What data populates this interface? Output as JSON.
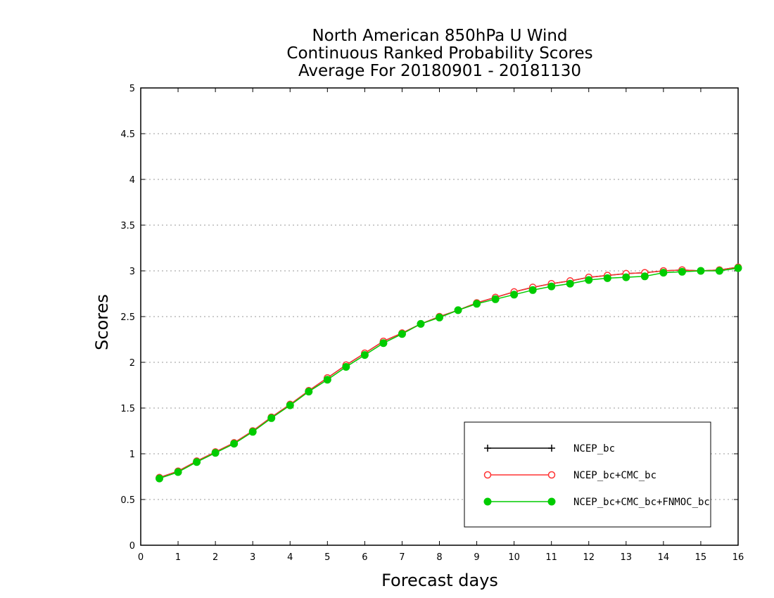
{
  "chart_data": {
    "type": "line",
    "title": [
      "North American 850hPa U Wind",
      "Continuous Ranked Probability Scores",
      "Average For 20180901 - 20181130"
    ],
    "xlabel": "Forecast days",
    "ylabel": "Scores",
    "xlim": [
      0,
      16
    ],
    "ylim": [
      0,
      5
    ],
    "xticks": [
      "0",
      "1",
      "2",
      "3",
      "4",
      "5",
      "6",
      "7",
      "8",
      "9",
      "10",
      "11",
      "12",
      "13",
      "14",
      "15",
      "16"
    ],
    "yticks": [
      "0",
      "0.5",
      "1",
      "1.5",
      "2",
      "2.5",
      "3",
      "3.5",
      "4",
      "4.5",
      "5"
    ],
    "grid": "horizontal dotted",
    "legend_position": "bottom-right",
    "x": [
      0.5,
      1,
      1.5,
      2,
      2.5,
      3,
      3.5,
      4,
      4.5,
      5,
      5.5,
      6,
      6.5,
      7,
      7.5,
      8,
      8.5,
      9,
      9.5,
      10,
      10.5,
      11,
      11.5,
      12,
      12.5,
      13,
      13.5,
      14,
      14.5,
      15,
      15.5,
      16
    ],
    "series": [
      {
        "name": "NCEP_bc",
        "color": "#000000",
        "marker": "plus",
        "values": [
          0.74,
          0.81,
          0.92,
          1.02,
          1.12,
          1.25,
          1.4,
          1.54,
          1.69,
          1.83,
          1.97,
          2.1,
          2.23,
          2.32,
          2.42,
          2.5,
          2.57,
          2.65,
          2.71,
          2.77,
          2.82,
          2.86,
          2.89,
          2.93,
          2.95,
          2.97,
          2.98,
          3.0,
          3.01,
          3.0,
          3.01,
          3.04
        ]
      },
      {
        "name": "NCEP_bc+CMC_bc",
        "color": "#ff3333",
        "marker": "open-circle",
        "values": [
          0.74,
          0.81,
          0.92,
          1.02,
          1.12,
          1.25,
          1.4,
          1.54,
          1.69,
          1.83,
          1.97,
          2.1,
          2.23,
          2.32,
          2.42,
          2.5,
          2.57,
          2.65,
          2.71,
          2.77,
          2.82,
          2.86,
          2.89,
          2.93,
          2.95,
          2.97,
          2.98,
          3.0,
          3.01,
          3.0,
          3.01,
          3.04
        ]
      },
      {
        "name": "NCEP_bc+CMC_bc+FNMOC_bc",
        "color": "#00cc00",
        "marker": "filled-circle",
        "values": [
          0.73,
          0.8,
          0.91,
          1.01,
          1.11,
          1.24,
          1.39,
          1.53,
          1.68,
          1.81,
          1.95,
          2.08,
          2.21,
          2.31,
          2.42,
          2.49,
          2.57,
          2.64,
          2.69,
          2.74,
          2.79,
          2.83,
          2.86,
          2.9,
          2.92,
          2.93,
          2.94,
          2.98,
          2.99,
          3.0,
          3.0,
          3.03
        ]
      }
    ]
  }
}
